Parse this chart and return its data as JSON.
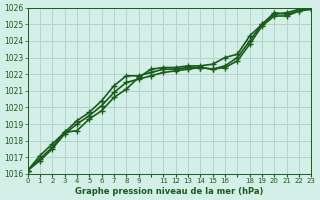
{
  "xlabel": "Graphe pression niveau de la mer (hPa)",
  "bg_color": "#d4eee8",
  "line_color": "#1a5c1a",
  "grid_color": "#b0d4cc",
  "ylim": [
    1016,
    1026
  ],
  "xlim": [
    0,
    23
  ],
  "yticks": [
    1016,
    1017,
    1018,
    1019,
    1020,
    1021,
    1022,
    1023,
    1024,
    1025,
    1026
  ],
  "xtick_labels": [
    "0",
    "1",
    "2",
    "3",
    "4",
    "5",
    "6",
    "7",
    "8",
    "9",
    "",
    "11",
    "12",
    "13",
    "14",
    "15",
    "16",
    "",
    "18",
    "19",
    "20",
    "21",
    "22",
    "23"
  ],
  "series": [
    [
      1016.2,
      1017.1,
      1017.8,
      1018.5,
      1018.6,
      1019.3,
      1019.8,
      1020.6,
      1021.1,
      1021.8,
      1022.3,
      1022.4,
      1022.4,
      1022.5,
      1022.5,
      1022.6,
      1023.0,
      1023.2,
      1024.3,
      1025.0,
      1025.6,
      1025.7,
      1025.9,
      1026.0
    ],
    [
      1016.2,
      1016.9,
      1017.6,
      1018.5,
      1019.2,
      1019.7,
      1020.4,
      1021.3,
      1021.9,
      1021.9,
      1022.1,
      1022.3,
      1022.3,
      1022.4,
      1022.4,
      1022.3,
      1022.5,
      1023.0,
      1024.0,
      1025.0,
      1025.7,
      1025.6,
      1025.8,
      1026.0
    ],
    [
      1016.2,
      1016.8,
      1017.5,
      1018.4,
      1019.0,
      1019.5,
      1020.1,
      1020.9,
      1021.5,
      1021.7,
      1021.9,
      1022.1,
      1022.2,
      1022.3,
      1022.4,
      1022.3,
      1022.4,
      1022.8,
      1023.8,
      1024.9,
      1025.5,
      1025.5,
      1025.8,
      1025.9
    ]
  ],
  "marker": "+",
  "markersize": 5,
  "linewidth": 1.2
}
